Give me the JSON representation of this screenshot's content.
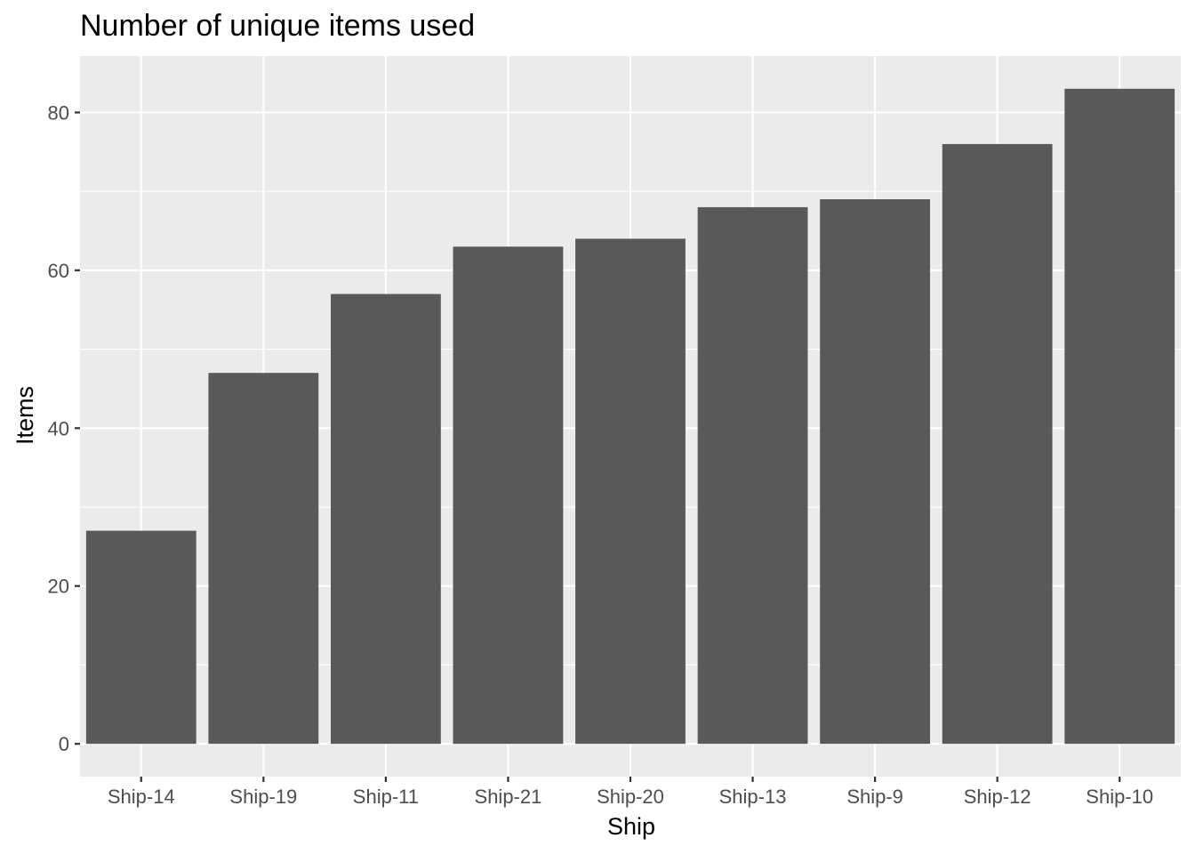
{
  "chart_data": {
    "type": "bar",
    "title": "Number of unique items used",
    "xlabel": "Ship",
    "ylabel": "Items",
    "categories": [
      "Ship-14",
      "Ship-19",
      "Ship-11",
      "Ship-21",
      "Ship-20",
      "Ship-13",
      "Ship-9",
      "Ship-12",
      "Ship-10"
    ],
    "values": [
      27,
      47,
      57,
      63,
      64,
      68,
      69,
      76,
      83
    ],
    "ylim": [
      -4.15,
      87.15
    ],
    "yticks": [
      0,
      20,
      40,
      60,
      80
    ],
    "yticks_minor": [
      10,
      30,
      50,
      70
    ],
    "grid": true,
    "legend": "none",
    "colors": {
      "bar": "#595959",
      "panel": "#ebebeb",
      "grid": "#ffffff"
    }
  }
}
